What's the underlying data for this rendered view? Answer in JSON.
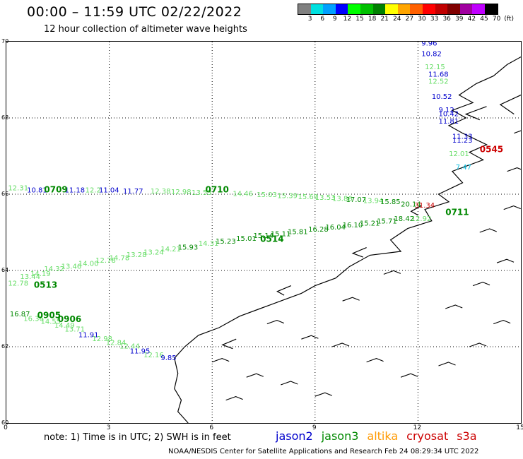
{
  "header": {
    "title": "00:00 – 11:59 UTC 02/22/2022",
    "subtitle": "12 hour collection of altimeter wave heights"
  },
  "colorbar": {
    "colors": [
      "#808080",
      "#00e0e0",
      "#00a0ff",
      "#0000ff",
      "#00ff00",
      "#00c000",
      "#008000",
      "#ffff00",
      "#ffa500",
      "#ff6000",
      "#ff0000",
      "#c00000",
      "#800000",
      "#a000a0",
      "#c000ff",
      "#000000"
    ],
    "labels": [
      "3",
      "6",
      "9",
      "12",
      "15",
      "18",
      "21",
      "24",
      "27",
      "30",
      "33",
      "36",
      "39",
      "42",
      "45",
      "70",
      "(ft)"
    ]
  },
  "axes": {
    "lat_labels": [
      "70",
      "68",
      "66",
      "64",
      "62",
      "60"
    ],
    "lon_labels": [
      "0",
      "3",
      "6",
      "9",
      "12",
      "15"
    ]
  },
  "colors": {
    "jason2": "#0000cc",
    "jason3": "#008800",
    "jason3_light": "#66dd66",
    "altika": "#ff9900",
    "cryosat": "#cc0000",
    "s3a": "#cc0000",
    "cyan": "#00bbdd"
  },
  "tracks": [
    {
      "id": "0709",
      "color": "jason3",
      "label_lon": 1.1,
      "label_lat": 66.05
    },
    {
      "id": "0710",
      "color": "jason3",
      "label_lon": 5.8,
      "label_lat": 66.05
    },
    {
      "id": "0711",
      "color": "jason3",
      "label_lon": 12.8,
      "label_lat": 65.45
    },
    {
      "id": "0514",
      "color": "jason3",
      "label_lon": 7.4,
      "label_lat": 64.75
    },
    {
      "id": "0513",
      "color": "jason3",
      "label_lon": 0.8,
      "label_lat": 63.55
    },
    {
      "id": "0905",
      "color": "jason3",
      "label_lon": 0.9,
      "label_lat": 62.75
    },
    {
      "id": "0906",
      "color": "jason3",
      "label_lon": 1.5,
      "label_lat": 62.65
    },
    {
      "id": "0545",
      "color": "cryosat",
      "label_lon": 13.8,
      "label_lat": 67.1
    }
  ],
  "observations": [
    {
      "v": "9.96",
      "color": "jason2",
      "lon": 12.1,
      "lat": 69.9
    },
    {
      "v": "10.82",
      "color": "jason2",
      "lon": 12.1,
      "lat": 69.62
    },
    {
      "v": "12.15",
      "color": "jason3_light",
      "lon": 12.2,
      "lat": 69.28
    },
    {
      "v": "11.68",
      "color": "jason2",
      "lon": 12.3,
      "lat": 69.08
    },
    {
      "v": "12.52",
      "color": "jason3_light",
      "lon": 12.3,
      "lat": 68.9
    },
    {
      "v": "10.52",
      "color": "jason2",
      "lon": 12.4,
      "lat": 68.5
    },
    {
      "v": "9.12",
      "color": "jason2",
      "lon": 12.6,
      "lat": 68.15
    },
    {
      "v": "10.42",
      "color": "jason2",
      "lon": 12.6,
      "lat": 68.05
    },
    {
      "v": "11.81",
      "color": "jason2",
      "lon": 12.6,
      "lat": 67.85
    },
    {
      "v": "11.33",
      "color": "jason2",
      "lon": 13.0,
      "lat": 67.45
    },
    {
      "v": "11.23",
      "color": "jason2",
      "lon": 13.0,
      "lat": 67.35
    },
    {
      "v": "12.01",
      "color": "jason3_light",
      "lon": 12.9,
      "lat": 67.0
    },
    {
      "v": "7.47",
      "color": "cyan",
      "lon": 13.1,
      "lat": 66.65
    },
    {
      "v": "12.31",
      "color": "jason3_light",
      "lon": 0.05,
      "lat": 66.1
    },
    {
      "v": "10.81",
      "color": "jason2",
      "lon": 0.6,
      "lat": 66.05
    },
    {
      "v": "11.18",
      "color": "jason2",
      "lon": 1.7,
      "lat": 66.05
    },
    {
      "v": "12.2",
      "color": "jason3_light",
      "lon": 2.3,
      "lat": 66.05
    },
    {
      "v": "11.04",
      "color": "jason2",
      "lon": 2.7,
      "lat": 66.05
    },
    {
      "v": "11.77",
      "color": "jason2",
      "lon": 3.4,
      "lat": 66.02
    },
    {
      "v": "12.38",
      "color": "jason3_light",
      "lon": 4.2,
      "lat": 66.02
    },
    {
      "v": "12.98",
      "color": "jason3_light",
      "lon": 4.8,
      "lat": 66.0
    },
    {
      "v": "13.53",
      "color": "jason3_light",
      "lon": 5.4,
      "lat": 65.98
    },
    {
      "v": "14.46",
      "color": "jason3_light",
      "lon": 6.6,
      "lat": 65.95
    },
    {
      "v": "15.03",
      "color": "jason3_light",
      "lon": 7.3,
      "lat": 65.93
    },
    {
      "v": "15.39",
      "color": "jason3_light",
      "lon": 7.9,
      "lat": 65.9
    },
    {
      "v": "15.69",
      "color": "jason3_light",
      "lon": 8.5,
      "lat": 65.87
    },
    {
      "v": "13.53",
      "color": "jason3_light",
      "lon": 9.0,
      "lat": 65.85
    },
    {
      "v": "13.86",
      "color": "jason3_light",
      "lon": 9.5,
      "lat": 65.82
    },
    {
      "v": "17.07",
      "color": "jason3",
      "lon": 9.9,
      "lat": 65.8
    },
    {
      "v": "13.94",
      "color": "jason3_light",
      "lon": 10.4,
      "lat": 65.77
    },
    {
      "v": "15.85",
      "color": "jason3",
      "lon": 10.9,
      "lat": 65.74
    },
    {
      "v": "20.14",
      "color": "jason3",
      "lon": 11.5,
      "lat": 65.68
    },
    {
      "v": "31.34",
      "color": "cryosat",
      "lon": 11.9,
      "lat": 65.65
    },
    {
      "v": "12.92",
      "color": "jason3_light",
      "lon": 11.8,
      "lat": 65.3
    },
    {
      "v": "18.42",
      "color": "jason3",
      "lon": 11.3,
      "lat": 65.3
    },
    {
      "v": "15.71",
      "color": "jason3",
      "lon": 10.8,
      "lat": 65.23
    },
    {
      "v": "15.21",
      "color": "jason3",
      "lon": 10.3,
      "lat": 65.18
    },
    {
      "v": "16.10",
      "color": "jason3",
      "lon": 9.8,
      "lat": 65.13
    },
    {
      "v": "16.04",
      "color": "jason3",
      "lon": 9.3,
      "lat": 65.07
    },
    {
      "v": "16.28",
      "color": "jason3",
      "lon": 8.8,
      "lat": 65.02
    },
    {
      "v": "15.81",
      "color": "jason3",
      "lon": 8.2,
      "lat": 64.95
    },
    {
      "v": "15.11",
      "color": "jason3",
      "lon": 7.7,
      "lat": 64.9
    },
    {
      "v": "15.14",
      "color": "jason3",
      "lon": 7.2,
      "lat": 64.85
    },
    {
      "v": "15.01",
      "color": "jason3",
      "lon": 6.7,
      "lat": 64.78
    },
    {
      "v": "15.23",
      "color": "jason3",
      "lon": 6.1,
      "lat": 64.7
    },
    {
      "v": "14.31",
      "color": "jason3_light",
      "lon": 5.6,
      "lat": 64.65
    },
    {
      "v": "15.93",
      "color": "jason3",
      "lon": 5.0,
      "lat": 64.55
    },
    {
      "v": "14.21",
      "color": "jason3_light",
      "lon": 4.5,
      "lat": 64.5
    },
    {
      "v": "13.24",
      "color": "jason3_light",
      "lon": 4.0,
      "lat": 64.42
    },
    {
      "v": "13.28",
      "color": "jason3_light",
      "lon": 3.5,
      "lat": 64.35
    },
    {
      "v": "14.78",
      "color": "jason3_light",
      "lon": 3.0,
      "lat": 64.27
    },
    {
      "v": "12.78",
      "color": "jason3_light",
      "lon": 2.6,
      "lat": 64.2
    },
    {
      "v": "14.00",
      "color": "jason3_light",
      "lon": 2.1,
      "lat": 64.12
    },
    {
      "v": "13.46",
      "color": "jason3_light",
      "lon": 1.6,
      "lat": 64.05
    },
    {
      "v": "14.32",
      "color": "jason3_light",
      "lon": 1.1,
      "lat": 63.98
    },
    {
      "v": "14.19",
      "color": "jason3_light",
      "lon": 0.7,
      "lat": 63.85
    },
    {
      "v": "13.44",
      "color": "jason3_light",
      "lon": 0.4,
      "lat": 63.78
    },
    {
      "v": "12.78",
      "color": "jason3_light",
      "lon": 0.05,
      "lat": 63.6
    },
    {
      "v": "16.87",
      "color": "jason3",
      "lon": 0.1,
      "lat": 62.8
    },
    {
      "v": "16.36",
      "color": "jason3_light",
      "lon": 0.5,
      "lat": 62.68
    },
    {
      "v": "14.55",
      "color": "jason3_light",
      "lon": 1.0,
      "lat": 62.6
    },
    {
      "v": "14.49",
      "color": "jason3_light",
      "lon": 1.4,
      "lat": 62.5
    },
    {
      "v": "13.71",
      "color": "jason3_light",
      "lon": 1.7,
      "lat": 62.4
    },
    {
      "v": "11.91",
      "color": "jason2",
      "lon": 2.1,
      "lat": 62.25
    },
    {
      "v": "12.98",
      "color": "jason3_light",
      "lon": 2.5,
      "lat": 62.15
    },
    {
      "v": "12.84",
      "color": "jason3_light",
      "lon": 2.9,
      "lat": 62.05
    },
    {
      "v": "12.44",
      "color": "jason3_light",
      "lon": 3.3,
      "lat": 61.95
    },
    {
      "v": "11.95",
      "color": "jason2",
      "lon": 3.6,
      "lat": 61.82
    },
    {
      "v": "12.16",
      "color": "jason3_light",
      "lon": 4.0,
      "lat": 61.72
    },
    {
      "v": "9.85",
      "color": "jason2",
      "lon": 4.5,
      "lat": 61.65
    }
  ],
  "note": "note: 1) Time is in UTC; 2) SWH is in feet",
  "legend": [
    {
      "name": "jason2",
      "color": "#0000cc"
    },
    {
      "name": "jason3",
      "color": "#008800"
    },
    {
      "name": "altika",
      "color": "#ff9900"
    },
    {
      "name": "cryosat",
      "color": "#cc0000"
    },
    {
      "name": "s3a",
      "color": "#cc0000"
    }
  ],
  "footer": "NOAA/NESDIS Center for Satellite Applications and Research    Feb 24 08:29:34 UTC 2022"
}
